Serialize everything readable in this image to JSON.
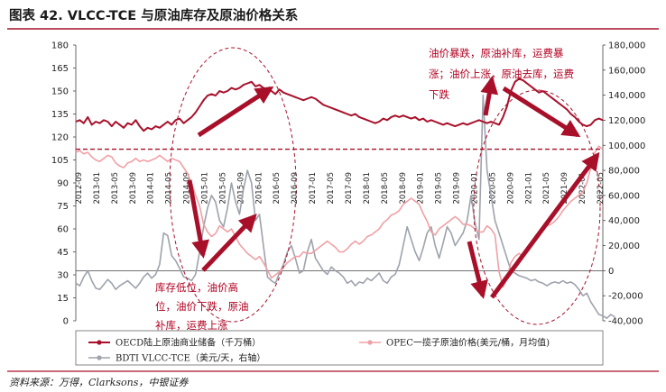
{
  "title": "图表 42. VLCC-TCE 与原油库存及原油价格关系",
  "source": "资料来源：万得，Clarksons，中银证券",
  "chart_data": {
    "type": "line",
    "y_left": {
      "min": 0,
      "max": 180,
      "ticks": [
        0,
        15,
        30,
        45,
        60,
        75,
        90,
        105,
        120,
        135,
        150,
        165,
        180
      ]
    },
    "y_right": {
      "min": -40000,
      "max": 180000,
      "ticks": [
        "-40,000",
        "-20,000",
        "0",
        "20,000",
        "40,000",
        "60,000",
        "80,000",
        "100,000",
        "120,000",
        "140,000",
        "160,000",
        "180,000"
      ]
    },
    "x_ticks": [
      "2012-09",
      "2013-01",
      "2013-05",
      "2013-09",
      "2014-01",
      "2014-05",
      "2014-09",
      "2015-01",
      "2015-05",
      "2015-09",
      "2016-01",
      "2016-05",
      "2016-09",
      "2017-01",
      "2017-05",
      "2017-09",
      "2018-01",
      "2018-05",
      "2018-09",
      "2019-01",
      "2019-05",
      "2019-09",
      "2020-01",
      "2020-05",
      "2020-09",
      "2021-01",
      "2021-05",
      "2021-09",
      "2022-01",
      "2022-05"
    ],
    "reference_line": {
      "axis": "left",
      "value": 112
    },
    "series": [
      {
        "name": "OECD陆上原油商业储备（千万桶）",
        "axis": "left",
        "color": "#a8102a",
        "values": [
          130,
          131,
          129,
          133,
          128,
          130,
          129,
          131,
          130,
          127,
          130,
          128,
          126,
          129,
          128,
          131,
          127,
          124,
          126,
          125,
          127,
          126,
          128,
          130,
          128,
          131,
          132,
          129,
          131,
          133,
          136,
          140,
          144,
          147,
          148,
          147,
          150,
          149,
          150,
          152,
          151,
          152,
          154,
          155,
          156,
          153,
          154,
          152,
          151,
          150,
          148,
          151,
          149,
          148,
          147,
          146,
          145,
          144,
          145,
          146,
          145,
          143,
          141,
          140,
          139,
          138,
          137,
          136,
          135,
          134,
          135,
          133,
          132,
          131,
          130,
          129,
          130,
          132,
          131,
          133,
          134,
          133,
          134,
          133,
          132,
          133,
          131,
          132,
          130,
          131,
          130,
          129,
          128,
          129,
          128,
          127,
          128,
          129,
          128,
          129,
          130,
          131,
          130,
          129,
          130,
          129,
          128,
          133,
          140,
          150,
          156,
          158,
          157,
          155,
          153,
          151,
          149,
          150,
          148,
          146,
          144,
          142,
          140,
          138,
          135,
          133,
          130,
          128,
          127,
          128,
          131,
          132,
          131
        ]
      },
      {
        "name": "OPEC一揽子原油价格（美元/桶，月均值）",
        "axis": "left",
        "color": "#f0a0a5",
        "values": [
          110,
          111,
          109,
          110,
          107,
          105,
          104,
          106,
          108,
          107,
          103,
          101,
          100,
          103,
          104,
          106,
          104,
          105,
          104,
          105,
          106,
          108,
          106,
          104,
          106,
          105,
          104,
          100,
          96,
          90,
          82,
          75,
          63,
          58,
          55,
          57,
          62,
          60,
          58,
          60,
          55,
          50,
          47,
          44,
          42,
          40,
          42,
          38,
          33,
          28,
          30,
          32,
          35,
          38,
          40,
          42,
          42,
          45,
          44,
          44,
          46,
          48,
          50,
          52,
          50,
          48,
          45,
          45,
          47,
          50,
          52,
          50,
          52,
          55,
          56,
          58,
          60,
          64,
          66,
          69,
          70,
          72,
          76,
          78,
          80,
          78,
          76,
          70,
          65,
          58,
          56,
          60,
          62,
          64,
          66,
          68,
          66,
          63,
          63,
          62,
          60,
          58,
          58,
          62,
          60,
          56,
          32,
          22,
          28,
          38,
          42,
          44,
          42,
          45,
          50,
          55,
          58,
          60,
          62,
          63,
          65,
          68,
          72,
          75,
          78,
          80,
          82,
          84,
          90,
          100,
          110,
          114,
          112
        ]
      },
      {
        "name": "BDTI VLCC-TCE（美元/天，右轴）",
        "axis": "right",
        "color": "#9ea2ac",
        "values": [
          -10000,
          -12000,
          -5000,
          0,
          -8000,
          -14000,
          -15000,
          -11000,
          -7000,
          -10000,
          -15000,
          -12000,
          -10000,
          -8000,
          -11000,
          -14000,
          -10000,
          -5000,
          -2000,
          -6000,
          -3000,
          5000,
          30000,
          28000,
          12000,
          8000,
          2000,
          -5000,
          -6000,
          -8000,
          -3000,
          15000,
          35000,
          50000,
          60000,
          55000,
          40000,
          35000,
          50000,
          70000,
          55000,
          45000,
          65000,
          80000,
          70000,
          40000,
          45000,
          20000,
          -5000,
          -8000,
          -10000,
          -2000,
          5000,
          15000,
          20000,
          10000,
          -2000,
          0,
          15000,
          25000,
          10000,
          5000,
          0,
          -3000,
          3000,
          0,
          -2000,
          -5000,
          -10000,
          -8000,
          -12000,
          -9000,
          -10000,
          -6000,
          -8000,
          -5000,
          -2000,
          -8000,
          -10000,
          -5000,
          -3000,
          5000,
          20000,
          35000,
          25000,
          15000,
          8000,
          18000,
          30000,
          35000,
          20000,
          10000,
          22000,
          35000,
          30000,
          20000,
          25000,
          30000,
          40000,
          60000,
          38000,
          25000,
          140000,
          80000,
          60000,
          40000,
          30000,
          20000,
          10000,
          0,
          -2000,
          -4000,
          -5000,
          -6000,
          -8000,
          -7000,
          -9000,
          -10000,
          -12000,
          -10000,
          -9000,
          -10000,
          -8000,
          -10000,
          -9000,
          -11000,
          -15000,
          -20000,
          -18000,
          -25000,
          -30000,
          -35000,
          -36000,
          -38000,
          -35000,
          -37000
        ]
      }
    ],
    "annotations": [
      {
        "lines": [
          "油价暴跌，原油补库，运费暴",
          "涨；油价上涨，原油去库，运费",
          "下跌"
        ]
      },
      {
        "lines": [
          "库存低位，油价高",
          "位，油价下跌，原油",
          "补库，运费上涨"
        ]
      }
    ]
  },
  "legend": [
    "OECD陆上原油商业储备（千万桶）",
    "OPEC一揽子原油价格(美元/桶，月均值)",
    "BDTI VLCC-TCE（美元/天，右轴）"
  ],
  "colors": {
    "oecd": "#a8102a",
    "opec": "#f0a0a5",
    "bdti": "#9ea2ac",
    "annotation": "#b00020"
  }
}
